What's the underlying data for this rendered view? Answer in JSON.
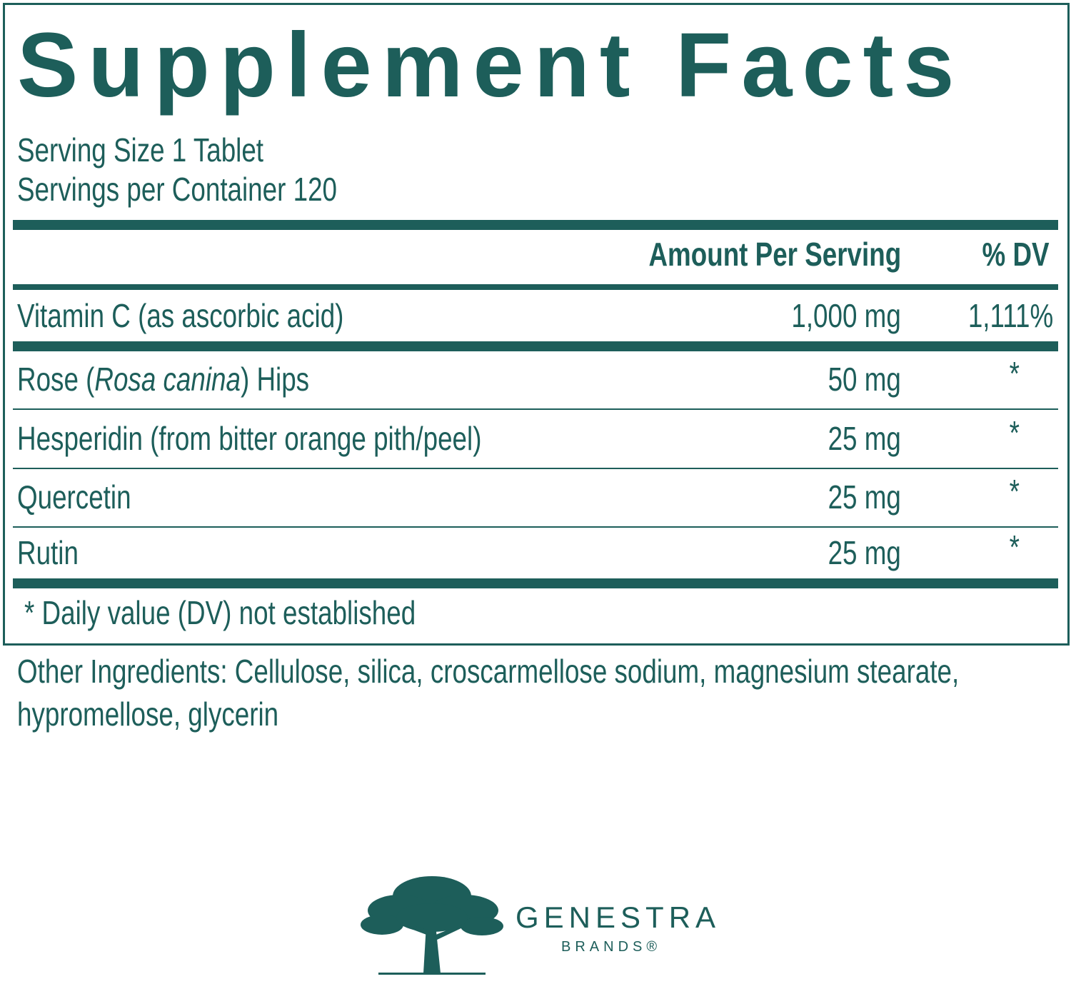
{
  "label": {
    "title": "Supplement Facts",
    "serving_size": "Serving Size 1 Tablet",
    "servings_per_container": "Servings per Container 120",
    "header": {
      "amount": "Amount Per Serving",
      "dv": "% DV"
    },
    "rows": [
      {
        "name": "Vitamin C (as ascorbic acid)",
        "amount": "1,000 mg",
        "dv": "1,111%"
      },
      {
        "name": [
          "Rose (",
          "Rosa canina",
          ") Hips"
        ],
        "amount": "50 mg",
        "dv": "*"
      },
      {
        "name": "Hesperidin (from bitter orange pith/peel)",
        "amount": "25 mg",
        "dv": "*"
      },
      {
        "name": "Quercetin",
        "amount": "25 mg",
        "dv": "*"
      },
      {
        "name": "Rutin",
        "amount": "25 mg",
        "dv": "*"
      }
    ],
    "footnote": "* Daily value (DV) not established"
  },
  "other_ingredients": [
    "Other Ingredients: Cellulose, silica, croscarmellose sodium, magnesium stearate,",
    "hypromellose, glycerin"
  ],
  "logo": {
    "name": "GENESTRA",
    "sub": "BRANDS®"
  }
}
